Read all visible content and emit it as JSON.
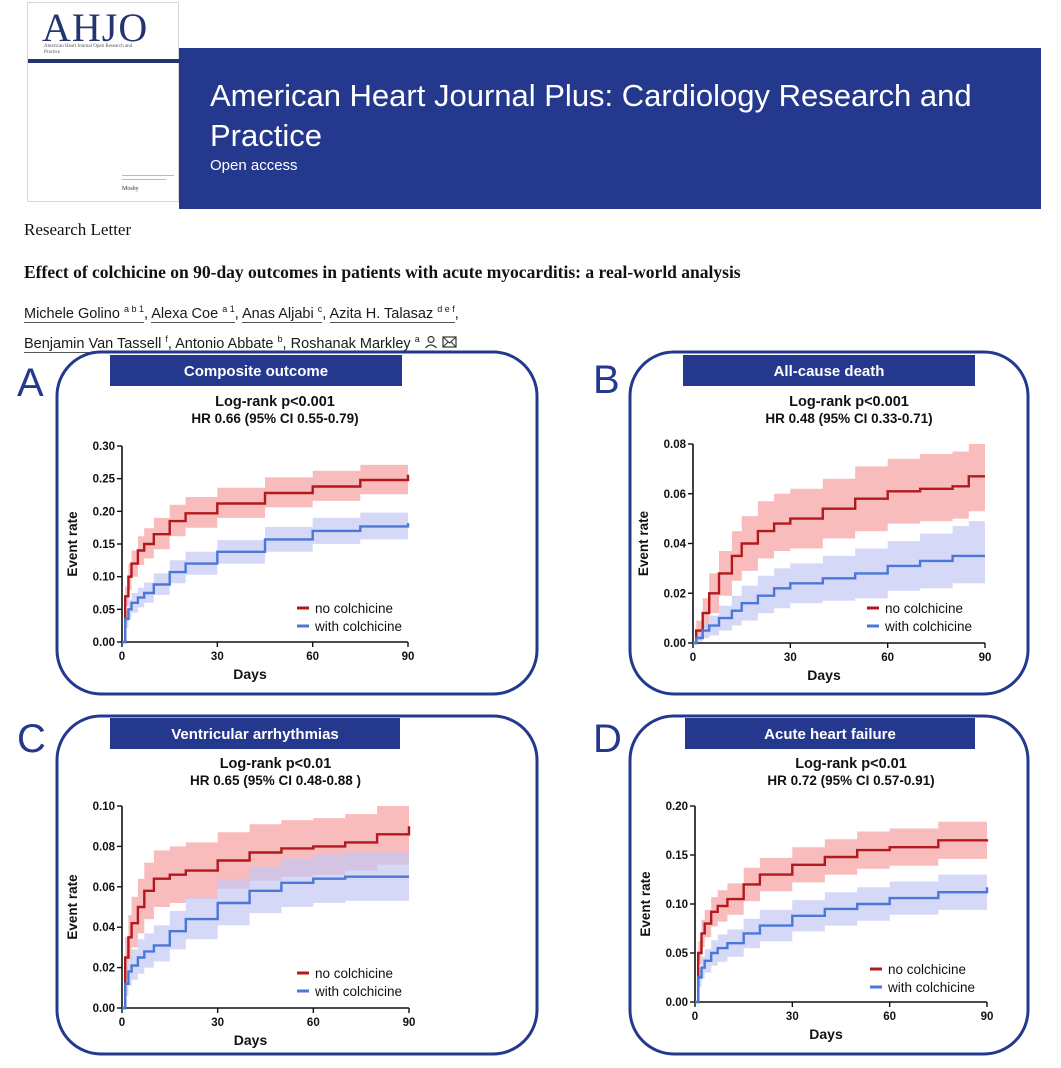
{
  "cover": {
    "logo_text": "AHJO",
    "subtitle": "American Heart Journal Open Research and Practice",
    "publisher": "Mosby"
  },
  "journal": {
    "name_line1": "American Heart Journal Plus: Cardiology Research and",
    "name_line2": "Practice",
    "access": "Open access"
  },
  "article": {
    "type": "Research Letter",
    "title": "Effect of colchicine on 90-day outcomes in patients with acute myocarditis: a real-world analysis",
    "authors": [
      {
        "name": "Michele Golino",
        "aff": "a b 1"
      },
      {
        "name": "Alexa Coe",
        "aff": "a 1"
      },
      {
        "name": "Anas Aljabi",
        "aff": "c"
      },
      {
        "name": "Azita H. Talasaz",
        "aff": "d e f"
      },
      {
        "name": "Benjamin Van Tassell",
        "aff": "f"
      },
      {
        "name": "Antonio Abbate",
        "aff": "b"
      },
      {
        "name": "Roshanak Markley",
        "aff": "a"
      }
    ]
  },
  "colors": {
    "navy": "#24398e",
    "red": "#b2191d",
    "red_band": "#f7a5a6",
    "blue": "#4a78d8",
    "blue_band": "#c4c8f4"
  },
  "chart_data": [
    {
      "panel": "A",
      "type": "line",
      "title": "Composite outcome",
      "stat1": "Log-rank p<0.001",
      "stat2": "HR 0.66 (95% CI 0.55-0.79)",
      "xlabel": "Days",
      "ylabel": "Event rate",
      "xlim": [
        0,
        90
      ],
      "ylim": [
        0,
        0.3
      ],
      "xticks": [
        0,
        30,
        60,
        90
      ],
      "xtick_labels": [
        "0",
        "30",
        "60",
        "90"
      ],
      "yticks": [
        0,
        0.05,
        0.1,
        0.15,
        0.2,
        0.25,
        0.3
      ],
      "ytick_labels": [
        "0.00",
        "0.05",
        "0.10",
        "0.15",
        "0.20",
        "0.25",
        "0.30"
      ],
      "x": [
        0,
        1,
        2,
        3,
        5,
        7,
        10,
        15,
        20,
        30,
        45,
        60,
        75,
        90
      ],
      "series": [
        {
          "name": "no colchicine",
          "values": [
            0,
            0.07,
            0.1,
            0.12,
            0.14,
            0.15,
            0.165,
            0.185,
            0.197,
            0.212,
            0.228,
            0.238,
            0.248,
            0.256
          ],
          "lower": [
            0,
            0.055,
            0.08,
            0.1,
            0.118,
            0.128,
            0.142,
            0.162,
            0.175,
            0.19,
            0.206,
            0.216,
            0.226,
            0.233
          ],
          "upper": [
            0,
            0.085,
            0.12,
            0.14,
            0.162,
            0.174,
            0.19,
            0.21,
            0.222,
            0.236,
            0.252,
            0.262,
            0.271,
            0.28
          ]
        },
        {
          "name": "with colchicine",
          "values": [
            0,
            0.035,
            0.05,
            0.06,
            0.068,
            0.075,
            0.088,
            0.107,
            0.12,
            0.138,
            0.157,
            0.17,
            0.177,
            0.182
          ],
          "lower": [
            0,
            0.022,
            0.035,
            0.045,
            0.053,
            0.06,
            0.072,
            0.09,
            0.103,
            0.12,
            0.138,
            0.15,
            0.157,
            0.161
          ],
          "upper": [
            0,
            0.048,
            0.065,
            0.075,
            0.083,
            0.091,
            0.105,
            0.125,
            0.138,
            0.156,
            0.176,
            0.19,
            0.198,
            0.204
          ]
        }
      ]
    },
    {
      "panel": "B",
      "type": "line",
      "title": "All-cause death",
      "stat1": "Log-rank p<0.001",
      "stat2": "HR 0.48 (95% CI 0.33-0.71)",
      "xlabel": "Days",
      "ylabel": "Event rate",
      "xlim": [
        0,
        90
      ],
      "ylim": [
        0,
        0.08
      ],
      "xticks": [
        0,
        30,
        60,
        90
      ],
      "xtick_labels": [
        "0",
        "30",
        "60",
        "90"
      ],
      "yticks": [
        0,
        0.02,
        0.04,
        0.06,
        0.08
      ],
      "ytick_labels": [
        "0.00",
        "0.02",
        "0.04",
        "0.06",
        "0.08"
      ],
      "x": [
        0,
        1,
        3,
        5,
        8,
        12,
        15,
        20,
        25,
        30,
        40,
        50,
        60,
        70,
        80,
        85,
        90
      ],
      "series": [
        {
          "name": "no colchicine",
          "values": [
            0,
            0.005,
            0.012,
            0.02,
            0.028,
            0.035,
            0.04,
            0.045,
            0.048,
            0.05,
            0.054,
            0.058,
            0.061,
            0.062,
            0.063,
            0.067,
            0.067
          ],
          "lower": [
            0,
            0.002,
            0.006,
            0.012,
            0.019,
            0.025,
            0.029,
            0.034,
            0.037,
            0.038,
            0.042,
            0.045,
            0.048,
            0.049,
            0.05,
            0.053,
            0.054
          ],
          "upper": [
            0,
            0.009,
            0.018,
            0.028,
            0.037,
            0.045,
            0.051,
            0.057,
            0.06,
            0.062,
            0.066,
            0.071,
            0.074,
            0.076,
            0.077,
            0.08,
            0.08
          ]
        },
        {
          "name": "with colchicine",
          "values": [
            0,
            0.002,
            0.005,
            0.007,
            0.01,
            0.013,
            0.016,
            0.019,
            0.022,
            0.024,
            0.026,
            0.028,
            0.031,
            0.033,
            0.035,
            0.035,
            0.035
          ],
          "lower": [
            0,
            0.0005,
            0.002,
            0.003,
            0.005,
            0.007,
            0.009,
            0.012,
            0.014,
            0.016,
            0.017,
            0.018,
            0.021,
            0.022,
            0.024,
            0.024,
            0.024
          ],
          "upper": [
            0,
            0.004,
            0.008,
            0.011,
            0.015,
            0.019,
            0.023,
            0.027,
            0.03,
            0.032,
            0.035,
            0.038,
            0.041,
            0.044,
            0.047,
            0.049,
            0.049
          ]
        }
      ]
    },
    {
      "panel": "C",
      "type": "line",
      "title": "Ventricular arrhythmias",
      "stat1": "Log-rank p<0.01",
      "stat2": "HR 0.65 (95% CI 0.48-0.88 )",
      "xlabel": "Days",
      "ylabel": "Event rate",
      "xlim": [
        0,
        90
      ],
      "ylim": [
        0,
        0.1
      ],
      "xticks": [
        0,
        30,
        60,
        90
      ],
      "xtick_labels": [
        "0",
        "30",
        "60",
        "90"
      ],
      "yticks": [
        0,
        0.02,
        0.04,
        0.06,
        0.08,
        0.1
      ],
      "ytick_labels": [
        "0.00",
        "0.02",
        "0.04",
        "0.06",
        "0.08",
        "0.10"
      ],
      "x": [
        0,
        1,
        2,
        3,
        5,
        7,
        10,
        15,
        20,
        30,
        40,
        50,
        60,
        70,
        80,
        90
      ],
      "series": [
        {
          "name": "no colchicine",
          "values": [
            0,
            0.025,
            0.035,
            0.042,
            0.05,
            0.058,
            0.064,
            0.066,
            0.068,
            0.073,
            0.077,
            0.079,
            0.08,
            0.082,
            0.086,
            0.09
          ],
          "lower": [
            0,
            0.015,
            0.024,
            0.03,
            0.037,
            0.044,
            0.05,
            0.052,
            0.054,
            0.059,
            0.063,
            0.065,
            0.066,
            0.068,
            0.071,
            0.074
          ],
          "upper": [
            0,
            0.035,
            0.046,
            0.055,
            0.064,
            0.072,
            0.078,
            0.08,
            0.082,
            0.087,
            0.091,
            0.093,
            0.094,
            0.096,
            0.1,
            0.1
          ]
        },
        {
          "name": "with colchicine",
          "values": [
            0,
            0.012,
            0.018,
            0.021,
            0.025,
            0.028,
            0.031,
            0.038,
            0.044,
            0.052,
            0.058,
            0.062,
            0.064,
            0.065,
            0.065,
            0.065
          ],
          "lower": [
            0,
            0.006,
            0.011,
            0.014,
            0.017,
            0.02,
            0.023,
            0.029,
            0.034,
            0.041,
            0.047,
            0.05,
            0.052,
            0.053,
            0.053,
            0.053
          ],
          "upper": [
            0,
            0.019,
            0.026,
            0.029,
            0.034,
            0.037,
            0.041,
            0.048,
            0.055,
            0.064,
            0.07,
            0.074,
            0.076,
            0.077,
            0.077,
            0.077
          ]
        }
      ]
    },
    {
      "panel": "D",
      "type": "line",
      "title": "Acute heart failure",
      "stat1": "Log-rank p<0.01",
      "stat2": "HR 0.72 (95% CI 0.57-0.91)",
      "xlabel": "Days",
      "ylabel": "Event rate",
      "xlim": [
        0,
        90
      ],
      "ylim": [
        0,
        0.2
      ],
      "xticks": [
        0,
        30,
        60,
        90
      ],
      "xtick_labels": [
        "0",
        "30",
        "60",
        "90"
      ],
      "yticks": [
        0,
        0.05,
        0.1,
        0.15,
        0.2
      ],
      "ytick_labels": [
        "0.00",
        "0.05",
        "0.10",
        "0.15",
        "0.20"
      ],
      "x": [
        0,
        1,
        2,
        3,
        5,
        7,
        10,
        15,
        20,
        30,
        40,
        50,
        60,
        75,
        90
      ],
      "series": [
        {
          "name": "no colchicine",
          "values": [
            0,
            0.05,
            0.07,
            0.08,
            0.092,
            0.098,
            0.105,
            0.12,
            0.13,
            0.14,
            0.148,
            0.155,
            0.158,
            0.165,
            0.166
          ],
          "lower": [
            0,
            0.038,
            0.056,
            0.066,
            0.077,
            0.082,
            0.089,
            0.103,
            0.113,
            0.122,
            0.13,
            0.136,
            0.139,
            0.146,
            0.146
          ],
          "upper": [
            0,
            0.062,
            0.084,
            0.094,
            0.107,
            0.114,
            0.121,
            0.137,
            0.147,
            0.158,
            0.166,
            0.174,
            0.177,
            0.184,
            0.186
          ]
        },
        {
          "name": "with colchicine",
          "values": [
            0,
            0.025,
            0.035,
            0.042,
            0.05,
            0.055,
            0.06,
            0.07,
            0.078,
            0.088,
            0.095,
            0.1,
            0.106,
            0.112,
            0.117
          ],
          "lower": [
            0,
            0.015,
            0.024,
            0.03,
            0.037,
            0.041,
            0.046,
            0.055,
            0.062,
            0.072,
            0.078,
            0.083,
            0.089,
            0.094,
            0.098
          ],
          "upper": [
            0,
            0.035,
            0.046,
            0.054,
            0.063,
            0.069,
            0.074,
            0.085,
            0.094,
            0.104,
            0.112,
            0.117,
            0.123,
            0.13,
            0.136
          ]
        }
      ]
    }
  ]
}
